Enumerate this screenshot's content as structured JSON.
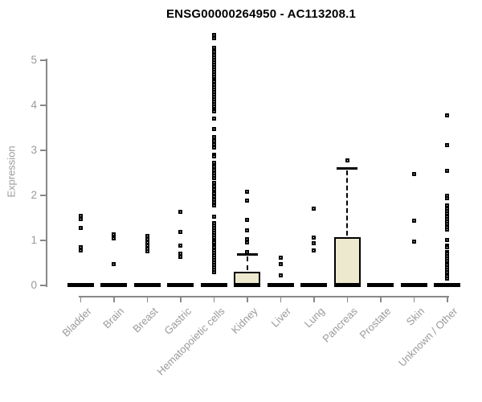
{
  "page": {
    "background": "#ffffff"
  },
  "colors": {
    "box_fill": "#ece9cf",
    "box_border": "#000000",
    "point": "#000000",
    "axis": "#888888",
    "tick_label": "#9a9a9a",
    "title": "#000000"
  },
  "chart_data": {
    "type": "box",
    "title": "ENSG00000264950 - AC113208.1",
    "ylabel": "Expression",
    "xlabel": "",
    "ylim": [
      0,
      5.6
    ],
    "yticks": [
      0,
      1,
      2,
      3,
      4,
      5
    ],
    "grid": false,
    "legend": "none",
    "categories": [
      "Bladder",
      "Brain",
      "Breast",
      "Gastric",
      "Hematopoietic cells",
      "Kidney",
      "Liver",
      "Lung",
      "Pancreas",
      "Prostate",
      "Skin",
      "Unknown / Other"
    ],
    "series": [
      {
        "name": "Bladder",
        "median": 0,
        "q1": 0,
        "q3": 0,
        "whisker_low": 0,
        "whisker_high": 0,
        "outliers": [
          1.55,
          1.48,
          1.28,
          0.84,
          0.77
        ]
      },
      {
        "name": "Brain",
        "median": 0,
        "q1": 0,
        "q3": 0,
        "whisker_low": 0,
        "whisker_high": 0,
        "outliers": [
          1.13,
          1.05,
          0.48
        ]
      },
      {
        "name": "Breast",
        "median": 0,
        "q1": 0,
        "q3": 0,
        "whisker_low": 0,
        "whisker_high": 0,
        "outliers": [
          1.1,
          1.03,
          0.96,
          0.89,
          0.82,
          0.76
        ]
      },
      {
        "name": "Gastric",
        "median": 0,
        "q1": 0,
        "q3": 0,
        "whisker_low": 0,
        "whisker_high": 0,
        "outliers": [
          1.64,
          1.19,
          0.89,
          0.71,
          0.63
        ]
      },
      {
        "name": "Hematopoietic cells",
        "median": 0,
        "q1": 0,
        "q3": 0,
        "whisker_low": 0,
        "whisker_high": 0,
        "outliers": [
          5.57,
          5.5,
          5.28,
          5.23,
          5.18,
          5.12,
          5.07,
          5.01,
          4.96,
          4.9,
          4.85,
          4.79,
          4.74,
          4.68,
          4.63,
          4.57,
          4.52,
          4.46,
          4.41,
          4.35,
          4.3,
          4.24,
          4.19,
          4.13,
          4.08,
          4.02,
          3.97,
          3.91,
          3.86,
          3.71,
          3.48,
          3.29,
          3.21,
          3.13,
          3.06,
          2.91,
          2.86,
          2.73,
          2.63,
          2.57,
          2.5,
          2.44,
          2.38,
          2.27,
          2.2,
          2.14,
          2.05,
          1.98,
          1.91,
          1.84,
          1.77,
          1.52,
          1.39,
          1.33,
          1.28,
          1.22,
          1.17,
          1.11,
          1.06,
          1.0,
          0.95,
          0.89,
          0.84,
          0.78,
          0.73,
          0.67,
          0.62,
          0.56,
          0.51,
          0.45,
          0.4,
          0.34,
          0.3
        ]
      },
      {
        "name": "Kidney",
        "median": 0,
        "q1": 0,
        "q3": 0.3,
        "whisker_low": 0,
        "whisker_high": 0.7,
        "outliers": [
          2.08,
          1.89,
          1.46,
          1.23,
          1.02,
          0.96,
          0.75
        ]
      },
      {
        "name": "Liver",
        "median": 0,
        "q1": 0,
        "q3": 0,
        "whisker_low": 0,
        "whisker_high": 0,
        "outliers": [
          0.61,
          0.47,
          0.22
        ]
      },
      {
        "name": "Lung",
        "median": 0,
        "q1": 0,
        "q3": 0,
        "whisker_low": 0,
        "whisker_high": 0,
        "outliers": [
          1.71,
          1.07,
          0.93,
          0.77
        ]
      },
      {
        "name": "Pancreas",
        "median": 0,
        "q1": 0,
        "q3": 1.08,
        "whisker_low": 0,
        "whisker_high": 2.6,
        "outliers": [
          2.78
        ]
      },
      {
        "name": "Prostate",
        "median": 0,
        "q1": 0,
        "q3": 0,
        "whisker_low": 0,
        "whisker_high": 0,
        "outliers": []
      },
      {
        "name": "Skin",
        "median": 0,
        "q1": 0,
        "q3": 0,
        "whisker_low": 0,
        "whisker_high": 0,
        "outliers": [
          2.47,
          1.43,
          0.98
        ]
      },
      {
        "name": "Unknown / Other",
        "median": 0,
        "q1": 0,
        "q3": 0,
        "whisker_low": 0,
        "whisker_high": 0,
        "outliers": [
          3.78,
          3.11,
          2.54,
          2.0,
          1.93,
          1.77,
          1.71,
          1.65,
          1.59,
          1.53,
          1.48,
          1.42,
          1.36,
          1.3,
          1.25,
          1.01,
          0.89,
          0.84,
          0.75,
          0.7,
          0.65,
          0.6,
          0.55,
          0.5,
          0.45,
          0.4,
          0.35,
          0.3,
          0.25,
          0.2,
          0.15
        ]
      }
    ]
  }
}
